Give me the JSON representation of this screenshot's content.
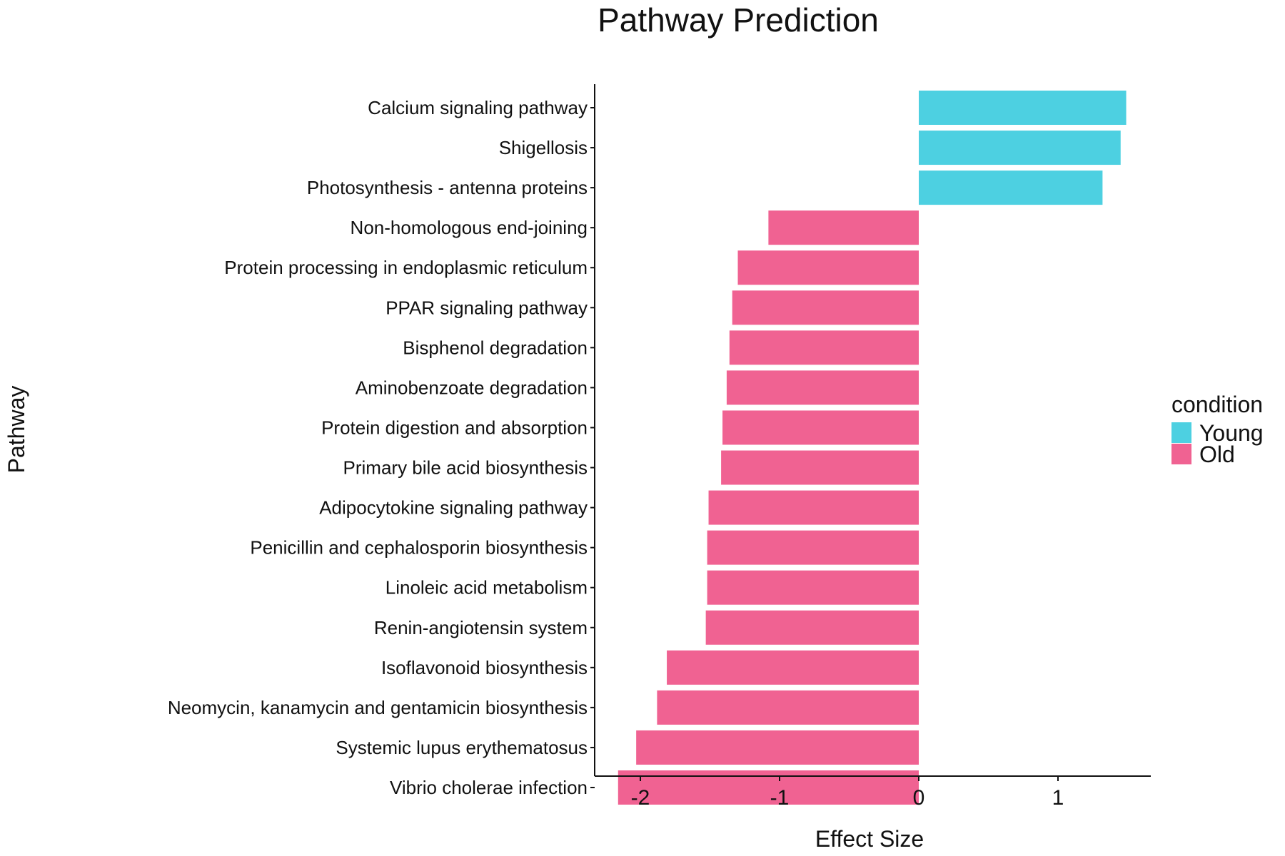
{
  "chart_data": {
    "type": "bar",
    "orientation": "horizontal",
    "title": "Pathway Prediction",
    "xlabel": "Effect Size",
    "ylabel": "Pathway",
    "xlim": [
      -2.35,
      1.65
    ],
    "xticks": [
      -2,
      -1,
      0,
      1
    ],
    "xtick_labels": [
      "-2",
      "-1",
      "0",
      "1"
    ],
    "grid": false,
    "legend": {
      "title": "condition",
      "position": "right",
      "entries": [
        {
          "label": "Young",
          "color": "#4DD0E1"
        },
        {
          "label": "Old",
          "color": "#F06292"
        }
      ]
    },
    "categories": [
      "Calcium signaling pathway",
      "Shigellosis",
      "Photosynthesis - antenna proteins",
      "Non-homologous end-joining",
      "Protein processing in endoplasmic reticulum",
      "PPAR signaling pathway",
      "Bisphenol degradation",
      "Aminobenzoate degradation",
      "Protein digestion and absorption",
      "Primary bile acid biosynthesis",
      "Adipocytokine signaling pathway",
      "Penicillin and cephalosporin biosynthesis",
      "Linoleic acid metabolism",
      "Renin-angiotensin system",
      "Isoflavonoid biosynthesis",
      "Neomycin, kanamycin and gentamicin biosynthesis",
      "Systemic lupus erythematosus",
      "Vibrio cholerae infection"
    ],
    "values": [
      1.49,
      1.45,
      1.32,
      -1.08,
      -1.3,
      -1.34,
      -1.36,
      -1.38,
      -1.41,
      -1.42,
      -1.51,
      -1.52,
      -1.52,
      -1.53,
      -1.81,
      -1.88,
      -2.03,
      -2.16
    ],
    "conditions": [
      "Young",
      "Young",
      "Young",
      "Old",
      "Old",
      "Old",
      "Old",
      "Old",
      "Old",
      "Old",
      "Old",
      "Old",
      "Old",
      "Old",
      "Old",
      "Old",
      "Old",
      "Old"
    ]
  }
}
